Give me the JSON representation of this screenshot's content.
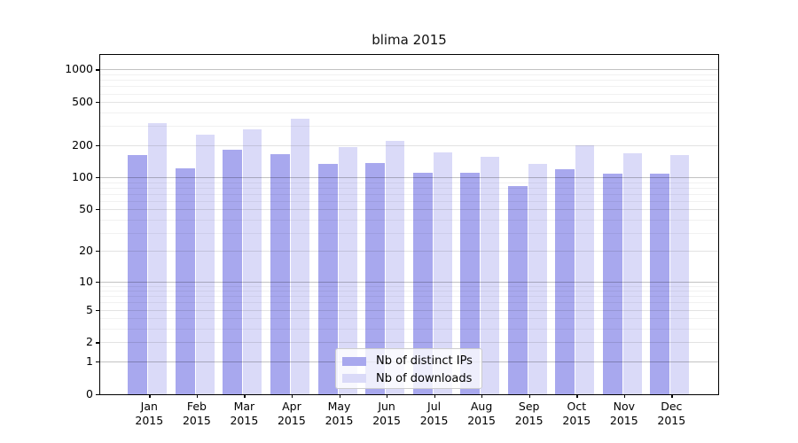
{
  "chart_data": {
    "type": "bar",
    "title": "blima 2015",
    "categories": [
      "Jan",
      "Feb",
      "Mar",
      "Apr",
      "May",
      "Jun",
      "Jul",
      "Aug",
      "Sep",
      "Oct",
      "Nov",
      "Dec"
    ],
    "year_label": "2015",
    "series": [
      {
        "name": "Nb of distinct IPs",
        "color": "#a8a8ee",
        "values": [
          160,
          121,
          182,
          163,
          132,
          136,
          110,
          111,
          83,
          119,
          108,
          108
        ]
      },
      {
        "name": "Nb of downloads",
        "color": "#dadaf8",
        "values": [
          320,
          250,
          280,
          352,
          192,
          219,
          170,
          154,
          133,
          197,
          166,
          162
        ]
      }
    ],
    "xlabel": "",
    "ylabel": "",
    "yscale": "log(1+y)",
    "yticks": [
      0,
      1,
      2,
      5,
      10,
      20,
      50,
      100,
      200,
      500,
      1000
    ],
    "ylim": [
      0,
      1365
    ],
    "grid": true,
    "legend_position": "lower center",
    "colors": {
      "bar_ips": "#a8a8ee",
      "bar_downloads": "#dadaf8",
      "grid_major": "#c2c2c2",
      "grid_minor": "#efefef",
      "spine": "#000000",
      "legend_border": "#cccccc"
    }
  }
}
